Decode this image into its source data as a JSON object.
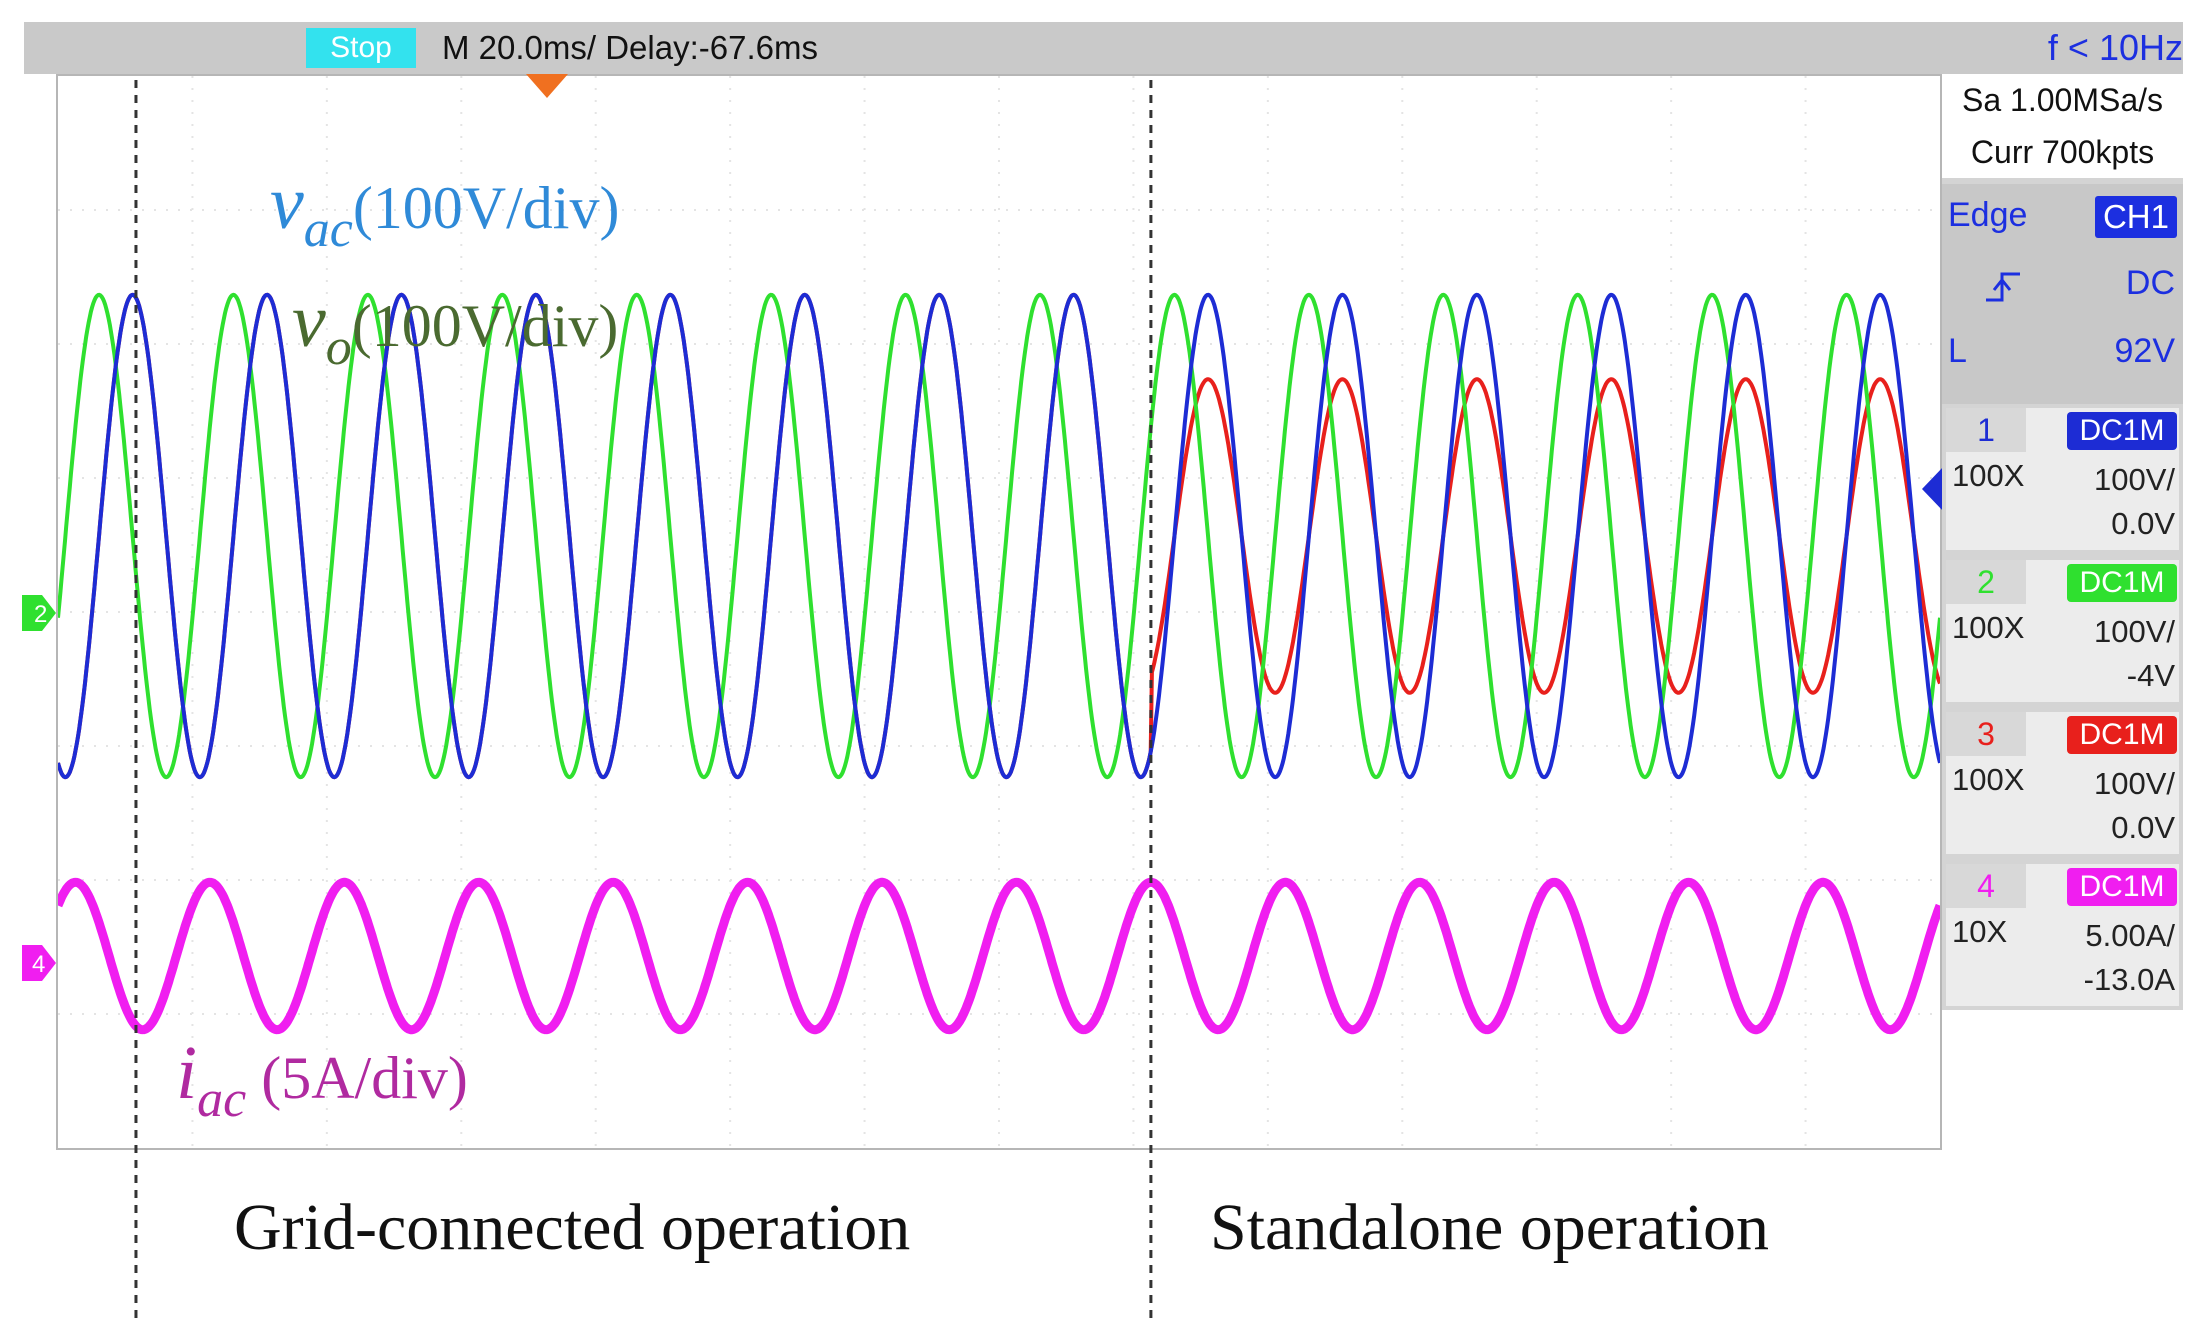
{
  "topbar": {
    "run_state": "Stop",
    "timebase": "M 20.0ms/ Delay:-67.6ms",
    "trigger_freq": "f < 10Hz"
  },
  "acquisition": {
    "sample_rate": "Sa 1.00MSa/s",
    "memory": "Curr 700kpts"
  },
  "trigger": {
    "mode": "Edge",
    "source": "CH1",
    "slope_icon": "rising-edge-icon",
    "coupling": "DC",
    "level_label": "L",
    "level": "92V"
  },
  "channels": [
    {
      "number": "1",
      "coupling": "DC1M",
      "probe": "100X",
      "scale": "100V/",
      "offset": "0.0V",
      "color": "#1d2cd4"
    },
    {
      "number": "2",
      "coupling": "DC1M",
      "probe": "100X",
      "scale": "100V/",
      "offset": "-4V",
      "color": "#2fe02f"
    },
    {
      "number": "3",
      "coupling": "DC1M",
      "probe": "100X",
      "scale": "100V/",
      "offset": "0.0V",
      "color": "#e8201c"
    },
    {
      "number": "4",
      "coupling": "DC1M",
      "probe": "10X",
      "scale": "5.00A/",
      "offset": "-13.0A",
      "color": "#f01ef0"
    }
  ],
  "annotations": {
    "vac_symbol": "v",
    "vac_sub": "ac",
    "vac_scale": "(100V/div)",
    "vo_symbol": "v",
    "vo_sub": "o",
    "vo_scale": "(100V/div)",
    "iac_symbol": "i",
    "iac_sub": "ac",
    "iac_scale": " (5A/div)"
  },
  "regions": {
    "left_label": "Grid-connected  operation",
    "right_label": "Standalone  operation"
  },
  "chart_data": {
    "type": "line",
    "x_unit": "ms",
    "x_range": [
      -67.6,
      212.4
    ],
    "grid": true,
    "mode_switch_times_ms": [
      -56.0,
      95.0
    ],
    "series": [
      {
        "name": "v_ac",
        "channel": "1",
        "color": "#1d2cd4",
        "frequency_hz": 50,
        "amplitude_div": 1.8,
        "standalone_amplitude_div": 1.8
      },
      {
        "name": "v_o",
        "channel": "2",
        "color": "#2fe02f",
        "frequency_hz": 50,
        "amplitude_div": 1.8,
        "standalone_amplitude_div": 1.8
      },
      {
        "name": "ch3",
        "channel": "3",
        "color": "#e8201c",
        "frequency_hz": 50,
        "amplitude_div": 1.8,
        "standalone_amplitude_div": 1.17
      },
      {
        "name": "i_ac",
        "channel": "4",
        "color": "#f01ef0",
        "frequency_hz": 50,
        "amplitude_div": 0.55,
        "standalone_amplitude_div": 0.55
      }
    ]
  }
}
